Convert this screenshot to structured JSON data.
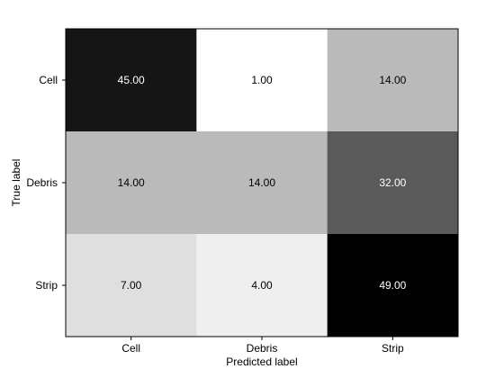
{
  "chart_data": {
    "type": "heatmap",
    "title": "",
    "xlabel": "Predicted label",
    "ylabel": "True label",
    "x_categories": [
      "Cell",
      "Debris",
      "Strip"
    ],
    "y_categories": [
      "Cell",
      "Debris",
      "Strip"
    ],
    "values": [
      [
        45,
        1,
        14
      ],
      [
        14,
        14,
        32
      ],
      [
        7,
        4,
        49
      ]
    ],
    "value_labels": [
      [
        "45.00",
        "1.00",
        "14.00"
      ],
      [
        "14.00",
        "14.00",
        "32.00"
      ],
      [
        "7.00",
        "4.00",
        "49.00"
      ]
    ],
    "colormap": "grayscale-reversed",
    "color_low": "#ffffff",
    "color_high": "#000000",
    "vmin": 1,
    "vmax": 49,
    "grid": false,
    "legend": "none"
  }
}
